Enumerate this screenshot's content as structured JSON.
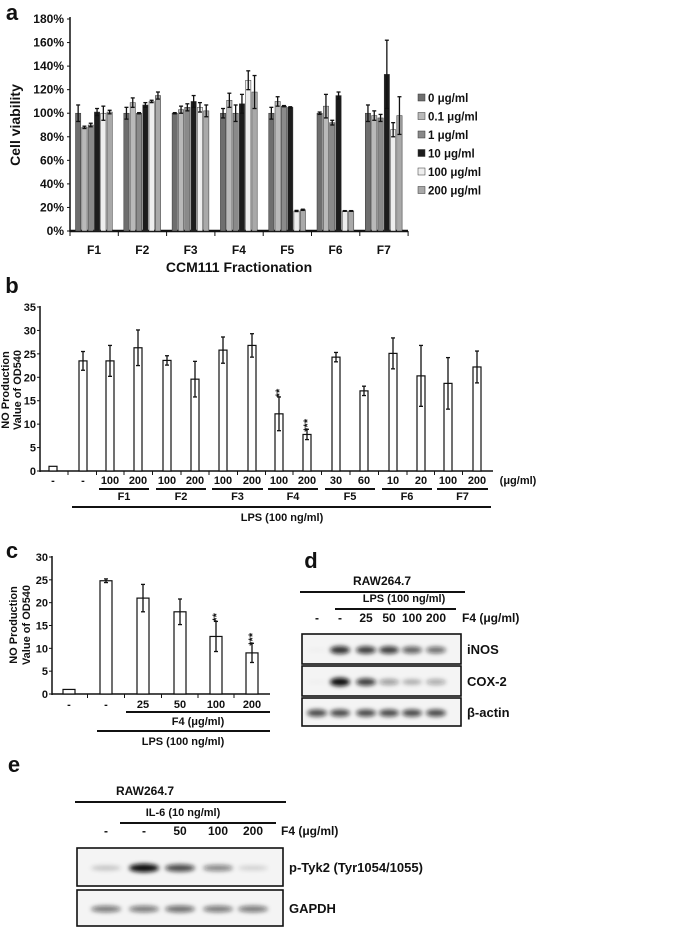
{
  "chart_data": [
    {
      "panel": "a",
      "type": "bar",
      "ylabel": "Cell viability",
      "xlabel": "CCM111 Fractionation",
      "ylim": [
        0,
        180
      ],
      "yticks": [
        "0%",
        "20%",
        "40%",
        "60%",
        "80%",
        "100%",
        "120%",
        "140%",
        "160%",
        "180%"
      ],
      "categories": [
        "F1",
        "F2",
        "F3",
        "F4",
        "F5",
        "F6",
        "F7"
      ],
      "legend_position": "right",
      "series": [
        {
          "name": "0 μg/ml",
          "color": "#6e6e6e",
          "values": [
            100,
            100,
            100,
            100,
            100,
            100,
            100
          ],
          "errors": [
            7,
            5,
            0.5,
            4,
            5,
            1,
            7
          ]
        },
        {
          "name": "0.1 μg/ml",
          "color": "#b9b9b9",
          "values": [
            88,
            109,
            103,
            111,
            110,
            106,
            98
          ],
          "errors": [
            1,
            4,
            3,
            6,
            4,
            10,
            4
          ]
        },
        {
          "name": "1 μg/ml",
          "color": "#8a8a8a",
          "values": [
            90,
            100,
            105,
            100,
            106,
            92,
            96
          ],
          "errors": [
            1.5,
            0.5,
            3,
            7,
            0.5,
            2,
            3
          ]
        },
        {
          "name": "10 μg/ml",
          "color": "#1c1c1c",
          "values": [
            101,
            107,
            110,
            108,
            105,
            115,
            133
          ],
          "errors": [
            3,
            2,
            5,
            8,
            0.5,
            3,
            29
          ]
        },
        {
          "name": "100 μg/ml",
          "color": "#eeeeee",
          "values": [
            100,
            110,
            105,
            128,
            17,
            17,
            86
          ],
          "errors": [
            6,
            1,
            4,
            8,
            0.5,
            0.3,
            6
          ]
        },
        {
          "name": "200 μg/ml",
          "color": "#a9a9a9",
          "values": [
            101,
            115,
            102,
            118,
            18,
            17,
            98
          ],
          "errors": [
            1.5,
            3,
            5,
            14,
            0.5,
            0.3,
            16
          ]
        }
      ]
    },
    {
      "panel": "b",
      "type": "bar",
      "ylabel": [
        "NO Production",
        "Value of OD540"
      ],
      "ylim": [
        0,
        35
      ],
      "yticks": [
        "0",
        "5",
        "10",
        "15",
        "20",
        "25",
        "30",
        "35"
      ],
      "dose_labels": [
        "-",
        "-",
        "100",
        "200",
        "100",
        "200",
        "100",
        "200",
        "100",
        "200",
        "30",
        "60",
        "10",
        "20",
        "100",
        "200"
      ],
      "dose_unit": "(μg/ml)",
      "groups": [
        "F1",
        "F2",
        "F3",
        "F4",
        "F5",
        "F6",
        "F7"
      ],
      "treatment": "LPS (100 ng/ml)",
      "values": [
        1,
        23.5,
        23.5,
        26.3,
        23.6,
        19.6,
        25.8,
        26.8,
        12.2,
        7.8,
        24.3,
        17.1,
        25.1,
        20.3,
        18.7,
        22.2
      ],
      "errors": [
        0,
        2,
        3.3,
        3.8,
        1,
        3.8,
        2.8,
        2.5,
        3.6,
        1.1,
        1,
        1,
        3.3,
        6.5,
        5.5,
        3.4
      ],
      "significance": [
        "",
        "",
        "",
        "",
        "",
        "",
        "",
        "",
        "**",
        "***",
        "",
        "",
        "",
        "",
        "",
        ""
      ]
    },
    {
      "panel": "c",
      "type": "bar",
      "ylabel": [
        "NO Production",
        "Value of OD540"
      ],
      "ylim": [
        0,
        30
      ],
      "yticks": [
        "0",
        "5",
        "10",
        "15",
        "20",
        "25",
        "30"
      ],
      "dose_labels": [
        "-",
        "-",
        "25",
        "50",
        "100",
        "200"
      ],
      "group": "F4 (μg/ml)",
      "treatment": "LPS (100 ng/ml)",
      "values": [
        1,
        24.8,
        21,
        18,
        12.6,
        9
      ],
      "errors": [
        0,
        0.4,
        3,
        2.8,
        3.3,
        2.1
      ],
      "significance": [
        "",
        "",
        "",
        "",
        "**",
        "***"
      ]
    }
  ],
  "blots": {
    "d": {
      "label": "d",
      "cell_line": "RAW264.7",
      "treatment": "LPS (100 ng/ml)",
      "lanes": [
        "-",
        "-",
        "25",
        "50",
        "100",
        "200"
      ],
      "dose_unit": "F4 (μg/ml)",
      "rows": [
        {
          "name": "iNOS",
          "intensity": [
            0.02,
            0.85,
            0.8,
            0.8,
            0.65,
            0.6
          ]
        },
        {
          "name": "COX-2",
          "intensity": [
            0.02,
            1.0,
            0.8,
            0.4,
            0.3,
            0.35
          ]
        },
        {
          "name": "β-actin",
          "intensity": [
            0.75,
            0.75,
            0.75,
            0.75,
            0.75,
            0.75
          ]
        }
      ]
    },
    "e": {
      "label": "e",
      "cell_line": "RAW264.7",
      "treatment": "IL-6 (10 ng/ml)",
      "lanes": [
        "-",
        "-",
        "50",
        "100",
        "200"
      ],
      "dose_unit": "F4 (μg/ml)",
      "rows": [
        {
          "name": "p-Tyk2 (Tyr1054/1055)",
          "intensity": [
            0.2,
            1.0,
            0.75,
            0.5,
            0.15
          ]
        },
        {
          "name": "GAPDH",
          "intensity": [
            0.55,
            0.55,
            0.6,
            0.55,
            0.55
          ]
        }
      ]
    }
  },
  "panel_labels": [
    "a",
    "b",
    "c"
  ]
}
